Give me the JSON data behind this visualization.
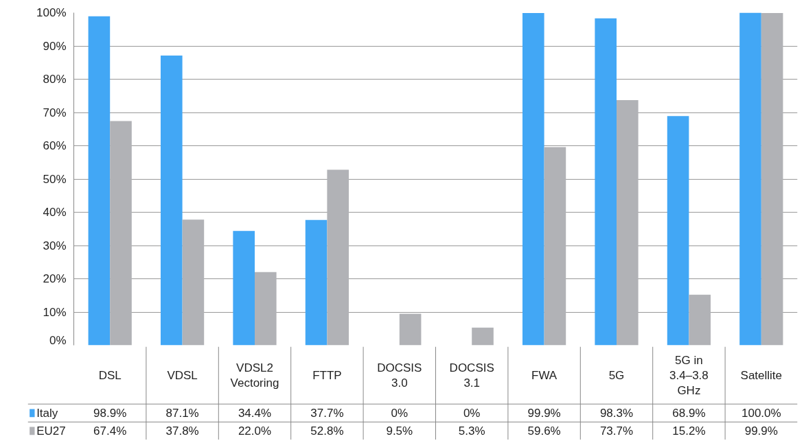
{
  "chart_data": {
    "type": "bar",
    "categories": [
      "DSL",
      "VDSL",
      "VDSL2\nVectoring",
      "FTTP",
      "DOCSIS\n3.0",
      "DOCSIS\n3.1",
      "FWA",
      "5G",
      "5G in\n3.4–3.8\nGHz",
      "Satellite"
    ],
    "series": [
      {
        "name": "Italy",
        "color": "#42a7f5",
        "values": [
          98.9,
          87.1,
          34.4,
          37.7,
          0,
          0,
          99.9,
          98.3,
          68.9,
          100.0
        ],
        "value_labels": [
          "98.9%",
          "87.1%",
          "34.4%",
          "37.7%",
          "0%",
          "0%",
          "99.9%",
          "98.3%",
          "68.9%",
          "100.0%"
        ]
      },
      {
        "name": "EU27",
        "color": "#b1b2b6",
        "values": [
          67.4,
          37.8,
          22.0,
          52.8,
          9.5,
          5.3,
          59.6,
          73.7,
          15.2,
          99.9
        ],
        "value_labels": [
          "67.4%",
          "37.8%",
          "22.0%",
          "52.8%",
          "9.5%",
          "5.3%",
          "59.6%",
          "73.7%",
          "15.2%",
          "99.9%"
        ]
      }
    ],
    "ylim": [
      0,
      100
    ],
    "yticks": [
      {
        "value": 0,
        "label": "0%"
      },
      {
        "value": 10,
        "label": "10%"
      },
      {
        "value": 20,
        "label": "20%"
      },
      {
        "value": 30,
        "label": "30%"
      },
      {
        "value": 40,
        "label": "40%"
      },
      {
        "value": 50,
        "label": "50%"
      },
      {
        "value": 60,
        "label": "60%"
      },
      {
        "value": 70,
        "label": "70%"
      },
      {
        "value": 80,
        "label": "80%"
      },
      {
        "value": 90,
        "label": "90%"
      },
      {
        "value": 100,
        "label": "100%"
      }
    ],
    "grid": "y",
    "legend": "bottom left"
  }
}
